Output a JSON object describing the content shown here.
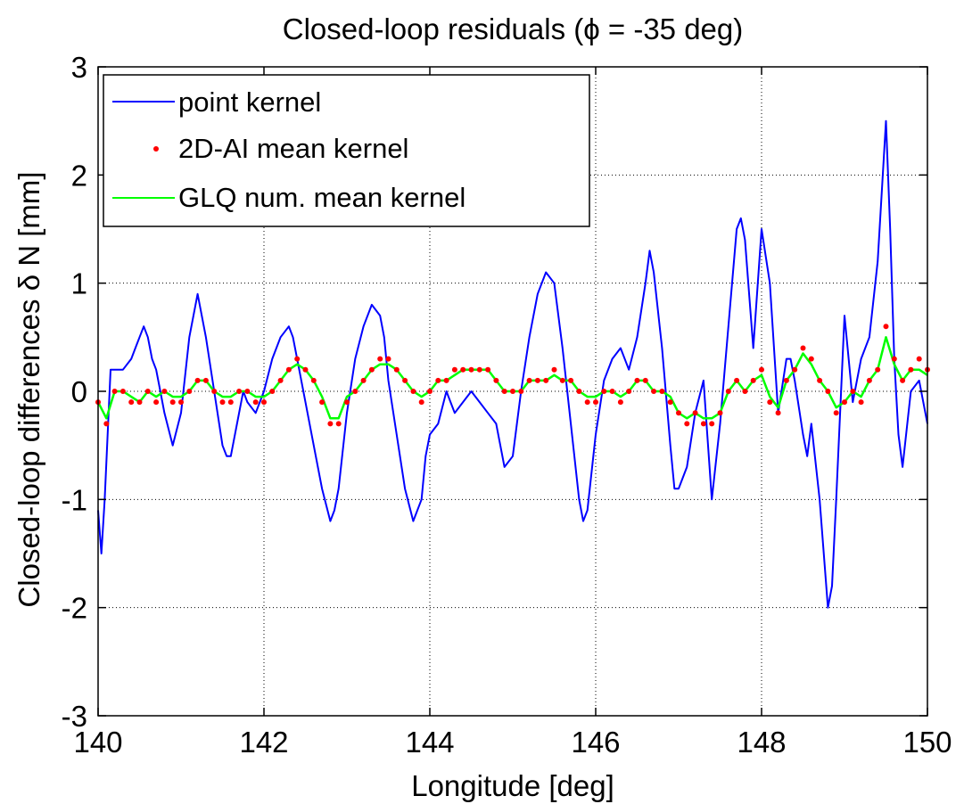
{
  "chart_data": {
    "type": "line",
    "title": "Closed-loop residuals (ϕ = -35 deg)",
    "xlabel": "Longitude [deg]",
    "ylabel": "Closed-loop differences δ N [mm]",
    "xlim": [
      140,
      150
    ],
    "ylim": [
      -3,
      3
    ],
    "xticks": [
      140,
      142,
      144,
      146,
      148,
      150
    ],
    "yticks": [
      -3,
      -2,
      -1,
      0,
      1,
      2,
      3
    ],
    "x_tick_labels": [
      "140",
      "142",
      "144",
      "146",
      "148",
      "150"
    ],
    "y_tick_labels": [
      "-3",
      "-2",
      "-1",
      "0",
      "1",
      "2",
      "3"
    ],
    "grid": true,
    "legend_position": "top-left",
    "series": [
      {
        "name": "point kernel",
        "style": "line",
        "color": "#0000ff",
        "x": [
          140.0,
          140.04,
          140.08,
          140.15,
          140.2,
          140.3,
          140.4,
          140.45,
          140.5,
          140.55,
          140.6,
          140.65,
          140.7,
          140.75,
          140.8,
          140.9,
          141.0,
          141.1,
          141.2,
          141.3,
          141.4,
          141.5,
          141.55,
          141.6,
          141.7,
          141.75,
          141.8,
          141.9,
          142.0,
          142.1,
          142.2,
          142.3,
          142.35,
          142.4,
          142.5,
          142.6,
          142.7,
          142.8,
          142.85,
          142.9,
          143.0,
          143.1,
          143.2,
          143.3,
          143.4,
          143.45,
          143.5,
          143.6,
          143.7,
          143.8,
          143.9,
          143.95,
          144.0,
          144.1,
          144.2,
          144.3,
          144.4,
          144.5,
          144.6,
          144.7,
          144.8,
          144.9,
          145.0,
          145.1,
          145.2,
          145.3,
          145.4,
          145.5,
          145.6,
          145.7,
          145.8,
          145.85,
          145.9,
          146.0,
          146.1,
          146.2,
          146.3,
          146.4,
          146.5,
          146.6,
          146.65,
          146.7,
          146.8,
          146.9,
          146.95,
          147.0,
          147.1,
          147.2,
          147.3,
          147.4,
          147.5,
          147.6,
          147.7,
          147.75,
          147.8,
          147.9,
          148.0,
          148.1,
          148.2,
          148.3,
          148.35,
          148.4,
          148.5,
          148.55,
          148.6,
          148.7,
          148.8,
          148.85,
          148.9,
          149.0,
          149.1,
          149.2,
          149.3,
          149.4,
          149.5,
          149.55,
          149.6,
          149.65,
          149.7,
          149.8,
          149.9,
          150.0
        ],
        "y": [
          -1.1,
          -1.5,
          -1.0,
          0.2,
          0.2,
          0.2,
          0.3,
          0.4,
          0.5,
          0.6,
          0.5,
          0.3,
          0.2,
          0.0,
          -0.2,
          -0.5,
          -0.2,
          0.5,
          0.9,
          0.5,
          0.0,
          -0.5,
          -0.6,
          -0.6,
          -0.2,
          0.0,
          -0.1,
          -0.2,
          0.0,
          0.3,
          0.5,
          0.6,
          0.5,
          0.3,
          -0.1,
          -0.5,
          -0.9,
          -1.2,
          -1.1,
          -0.9,
          -0.2,
          0.3,
          0.6,
          0.8,
          0.7,
          0.5,
          0.1,
          -0.4,
          -0.9,
          -1.2,
          -1.0,
          -0.6,
          -0.4,
          -0.3,
          0.0,
          -0.2,
          -0.1,
          0.0,
          -0.1,
          -0.2,
          -0.3,
          -0.7,
          -0.6,
          0.0,
          0.5,
          0.9,
          1.1,
          1.0,
          0.4,
          -0.3,
          -1.0,
          -1.2,
          -1.1,
          -0.4,
          0.1,
          0.3,
          0.4,
          0.2,
          0.5,
          1.0,
          1.3,
          1.1,
          0.4,
          -0.5,
          -0.9,
          -0.9,
          -0.7,
          -0.2,
          0.1,
          -1.0,
          -0.3,
          0.6,
          1.5,
          1.6,
          1.4,
          0.4,
          1.5,
          1.0,
          -0.2,
          0.3,
          0.3,
          0.1,
          -0.4,
          -0.6,
          -0.3,
          -1.0,
          -2.0,
          -1.8,
          -1.0,
          0.7,
          -0.1,
          0.3,
          0.5,
          1.2,
          2.5,
          1.5,
          0.3,
          -0.4,
          -0.7,
          0.0,
          0.1,
          -0.3
        ]
      },
      {
        "name": "2D-AI mean kernel",
        "style": "dots",
        "color": "#ff0000",
        "x": [
          140.0,
          140.1,
          140.2,
          140.3,
          140.4,
          140.5,
          140.6,
          140.7,
          140.8,
          140.9,
          141.0,
          141.1,
          141.2,
          141.3,
          141.4,
          141.5,
          141.6,
          141.7,
          141.8,
          141.9,
          142.0,
          142.1,
          142.2,
          142.3,
          142.4,
          142.5,
          142.6,
          142.7,
          142.8,
          142.9,
          143.0,
          143.1,
          143.2,
          143.3,
          143.4,
          143.5,
          143.6,
          143.7,
          143.8,
          143.9,
          144.0,
          144.1,
          144.2,
          144.3,
          144.4,
          144.5,
          144.6,
          144.7,
          144.8,
          144.9,
          145.0,
          145.1,
          145.2,
          145.3,
          145.4,
          145.5,
          145.6,
          145.7,
          145.8,
          145.9,
          146.0,
          146.1,
          146.2,
          146.3,
          146.4,
          146.5,
          146.6,
          146.7,
          146.8,
          146.9,
          147.0,
          147.1,
          147.2,
          147.3,
          147.4,
          147.5,
          147.6,
          147.7,
          147.8,
          147.9,
          148.0,
          148.1,
          148.2,
          148.3,
          148.4,
          148.5,
          148.6,
          148.7,
          148.8,
          148.9,
          149.0,
          149.1,
          149.2,
          149.3,
          149.4,
          149.5,
          149.6,
          149.7,
          149.8,
          149.9,
          150.0
        ],
        "y": [
          -0.1,
          -0.3,
          0.0,
          0.0,
          -0.1,
          -0.1,
          0.0,
          -0.1,
          0.0,
          -0.1,
          -0.1,
          0.0,
          0.1,
          0.1,
          0.0,
          -0.1,
          -0.1,
          0.0,
          0.0,
          -0.1,
          -0.1,
          0.0,
          0.1,
          0.2,
          0.3,
          0.2,
          0.1,
          -0.1,
          -0.3,
          -0.3,
          -0.1,
          0.0,
          0.1,
          0.2,
          0.3,
          0.3,
          0.2,
          0.1,
          0.0,
          -0.1,
          0.0,
          0.1,
          0.1,
          0.2,
          0.2,
          0.2,
          0.2,
          0.2,
          0.1,
          0.0,
          0.0,
          0.0,
          0.1,
          0.1,
          0.1,
          0.2,
          0.1,
          0.1,
          0.0,
          -0.1,
          -0.1,
          0.0,
          0.0,
          -0.1,
          0.0,
          0.1,
          0.1,
          0.0,
          0.0,
          -0.1,
          -0.2,
          -0.3,
          -0.2,
          -0.3,
          -0.3,
          -0.2,
          0.0,
          0.1,
          0.0,
          0.1,
          0.2,
          -0.1,
          -0.2,
          0.1,
          0.2,
          0.4,
          0.3,
          0.1,
          0.0,
          -0.2,
          -0.1,
          0.0,
          -0.1,
          0.1,
          0.2,
          0.6,
          0.3,
          0.1,
          0.2,
          0.3,
          0.2
        ]
      },
      {
        "name": "GLQ num. mean kernel",
        "style": "line",
        "color": "#00ff00",
        "x": [
          140.0,
          140.1,
          140.2,
          140.3,
          140.4,
          140.5,
          140.6,
          140.7,
          140.8,
          140.9,
          141.0,
          141.1,
          141.2,
          141.3,
          141.4,
          141.5,
          141.6,
          141.7,
          141.8,
          141.9,
          142.0,
          142.1,
          142.2,
          142.3,
          142.4,
          142.5,
          142.6,
          142.7,
          142.8,
          142.9,
          143.0,
          143.1,
          143.2,
          143.3,
          143.4,
          143.5,
          143.6,
          143.7,
          143.8,
          143.9,
          144.0,
          144.1,
          144.2,
          144.3,
          144.4,
          144.5,
          144.6,
          144.7,
          144.8,
          144.9,
          145.0,
          145.1,
          145.2,
          145.3,
          145.4,
          145.5,
          145.6,
          145.7,
          145.8,
          145.9,
          146.0,
          146.1,
          146.2,
          146.3,
          146.4,
          146.5,
          146.6,
          146.7,
          146.8,
          146.9,
          147.0,
          147.1,
          147.2,
          147.3,
          147.4,
          147.5,
          147.6,
          147.7,
          147.8,
          147.9,
          148.0,
          148.1,
          148.2,
          148.3,
          148.4,
          148.5,
          148.6,
          148.7,
          148.8,
          148.9,
          149.0,
          149.1,
          149.2,
          149.3,
          149.4,
          149.5,
          149.6,
          149.7,
          149.8,
          149.9,
          150.0
        ],
        "y": [
          -0.1,
          -0.25,
          0.0,
          0.0,
          -0.05,
          -0.1,
          0.0,
          -0.05,
          0.0,
          -0.05,
          -0.05,
          0.0,
          0.1,
          0.1,
          0.0,
          -0.05,
          -0.05,
          0.0,
          0.0,
          -0.05,
          -0.05,
          0.0,
          0.1,
          0.2,
          0.25,
          0.2,
          0.1,
          -0.05,
          -0.25,
          -0.25,
          -0.05,
          0.0,
          0.1,
          0.2,
          0.25,
          0.25,
          0.2,
          0.1,
          0.0,
          -0.05,
          0.0,
          0.1,
          0.1,
          0.15,
          0.2,
          0.2,
          0.2,
          0.2,
          0.1,
          0.0,
          0.0,
          0.0,
          0.1,
          0.1,
          0.1,
          0.15,
          0.1,
          0.1,
          0.0,
          -0.05,
          -0.05,
          0.0,
          0.0,
          -0.05,
          0.0,
          0.1,
          0.1,
          0.0,
          0.0,
          -0.05,
          -0.2,
          -0.25,
          -0.2,
          -0.25,
          -0.25,
          -0.2,
          0.0,
          0.1,
          0.0,
          0.1,
          0.15,
          -0.05,
          -0.15,
          0.1,
          0.2,
          0.35,
          0.25,
          0.1,
          0.0,
          -0.15,
          -0.1,
          0.0,
          -0.05,
          0.1,
          0.2,
          0.5,
          0.25,
          0.1,
          0.2,
          0.2,
          0.15
        ]
      }
    ]
  }
}
